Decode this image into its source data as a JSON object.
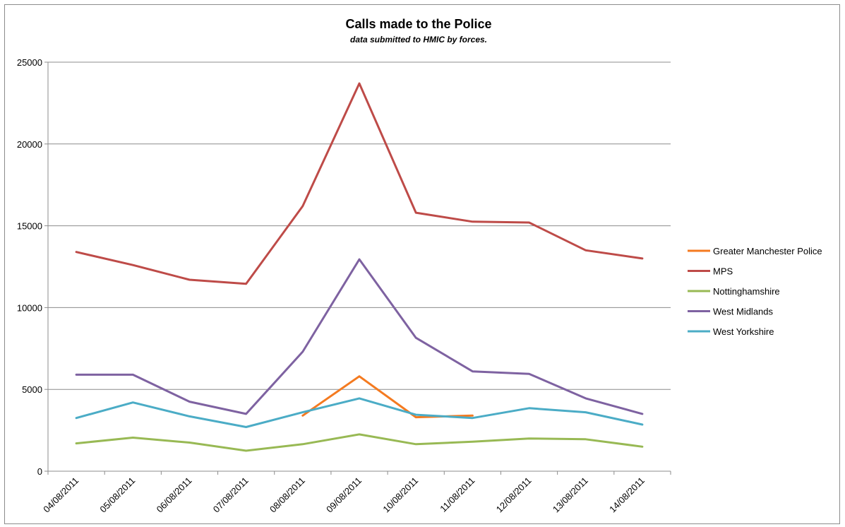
{
  "chart_data": {
    "type": "line",
    "title": "Calls made to the Police",
    "subtitle": "data submitted to HMIC by forces.",
    "xlabel": "",
    "ylabel": "",
    "ylim": [
      0,
      25000
    ],
    "yticks": [
      0,
      5000,
      10000,
      15000,
      20000,
      25000
    ],
    "grid": true,
    "legend_position": "right",
    "categories": [
      "04/08/2011",
      "05/08/2011",
      "06/08/2011",
      "07/08/2011",
      "08/08/2011",
      "09/08/2011",
      "10/08/2011",
      "11/08/2011",
      "12/08/2011",
      "13/08/2011",
      "14/08/2011"
    ],
    "series": [
      {
        "name": "Greater Manchester Police",
        "color": "#f47a20",
        "values": [
          null,
          null,
          null,
          null,
          3400,
          5800,
          3300,
          3400,
          null,
          null,
          null
        ]
      },
      {
        "name": "MPS",
        "color": "#be4b48",
        "values": [
          13400,
          12600,
          11700,
          11450,
          16200,
          23700,
          15800,
          15250,
          15200,
          13500,
          13000
        ]
      },
      {
        "name": "Nottinghamshire",
        "color": "#98b954",
        "values": [
          1700,
          2050,
          1750,
          1250,
          1650,
          2250,
          1650,
          1800,
          2000,
          1950,
          1500
        ]
      },
      {
        "name": "West Midlands",
        "color": "#7e62a1",
        "values": [
          5900,
          5900,
          4250,
          3500,
          7300,
          12950,
          8150,
          6100,
          5950,
          4450,
          3500
        ]
      },
      {
        "name": "West Yorkshire",
        "color": "#4bacc6",
        "values": [
          3250,
          4200,
          3350,
          2700,
          3600,
          4450,
          3450,
          3250,
          3850,
          3600,
          2850
        ]
      }
    ]
  }
}
